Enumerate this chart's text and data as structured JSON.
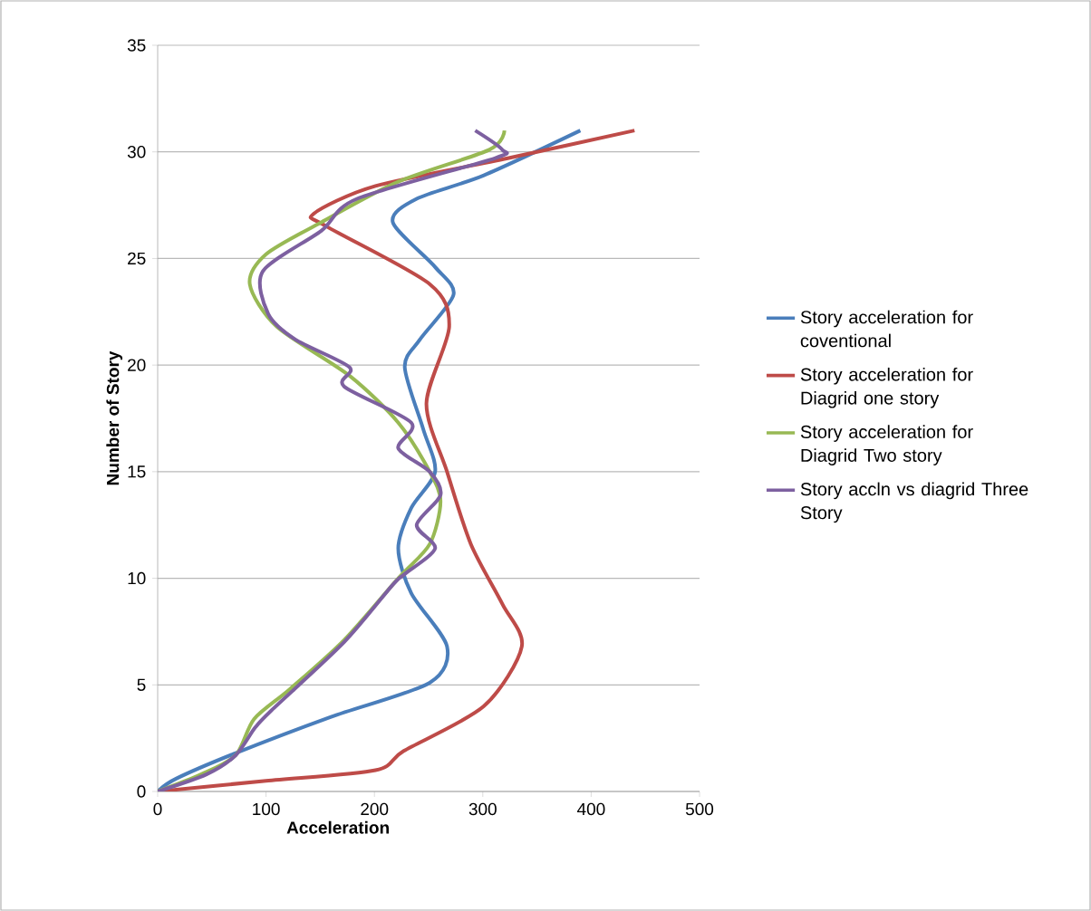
{
  "chart_data": {
    "type": "line",
    "xlabel": "Acceleration",
    "ylabel": "Number of Story",
    "xlim": [
      0,
      500
    ],
    "xticks": [
      0,
      100,
      200,
      300,
      400,
      500
    ],
    "ylim": [
      0,
      35
    ],
    "yticks": [
      0,
      5,
      10,
      15,
      20,
      25,
      30,
      35
    ],
    "grid": "y",
    "legend": "right",
    "marker": "none",
    "line_style": "solid",
    "series": [
      {
        "name": "Story acceleration for coventional",
        "color": "#4a7ebb",
        "x": [
          0,
          17,
          72,
          160,
          251,
          267,
          234,
          222,
          234,
          256,
          245,
          228,
          242,
          273,
          256,
          217,
          239,
          301,
          390
        ],
        "values": [
          0,
          0.6,
          1.8,
          3.5,
          5.1,
          6.8,
          9.3,
          11.4,
          13.3,
          15,
          17,
          19.9,
          21.2,
          23.3,
          24.6,
          26.7,
          27.8,
          28.9,
          31
        ]
      },
      {
        "name": "Story acceleration for Diagrid one story",
        "color": "#be4b48",
        "x": [
          0,
          100,
          201,
          227,
          301,
          336,
          318,
          289,
          267,
          248,
          269,
          251,
          156,
          144,
          201,
          323,
          440
        ],
        "values": [
          0,
          0.5,
          1,
          1.9,
          4,
          6.8,
          8.8,
          11.6,
          15,
          18.2,
          21.8,
          23.8,
          26.5,
          27.1,
          28.4,
          29.7,
          31
        ]
      },
      {
        "name": "Story acceleration for Diagrid Two story",
        "color": "#98b954",
        "x": [
          0,
          40,
          72,
          89,
          122,
          172,
          222,
          251,
          261,
          251,
          222,
          177,
          110,
          85,
          100,
          151,
          222,
          306,
          320
        ],
        "values": [
          0,
          0.8,
          1.7,
          3.4,
          4.8,
          7.1,
          10,
          11.6,
          13.6,
          15,
          17.3,
          19.5,
          21.8,
          23.8,
          25.2,
          26.7,
          28.6,
          30.1,
          31
        ]
      },
      {
        "name": "Story accln vs diagrid Three Story",
        "color": "#7d60a0",
        "x": [
          0,
          45,
          72,
          90,
          105,
          172,
          217,
          228,
          256,
          239,
          261,
          251,
          222,
          234,
          172,
          177,
          127,
          102,
          97,
          151,
          184,
          311,
          318,
          293
        ],
        "values": [
          0,
          0.8,
          1.7,
          3,
          3.8,
          7,
          9.7,
          10.2,
          11.4,
          12.5,
          13.9,
          15,
          16.1,
          17.3,
          19,
          19.9,
          21.2,
          22.4,
          24.4,
          26.3,
          27.8,
          29.7,
          30.1,
          31
        ]
      }
    ]
  }
}
